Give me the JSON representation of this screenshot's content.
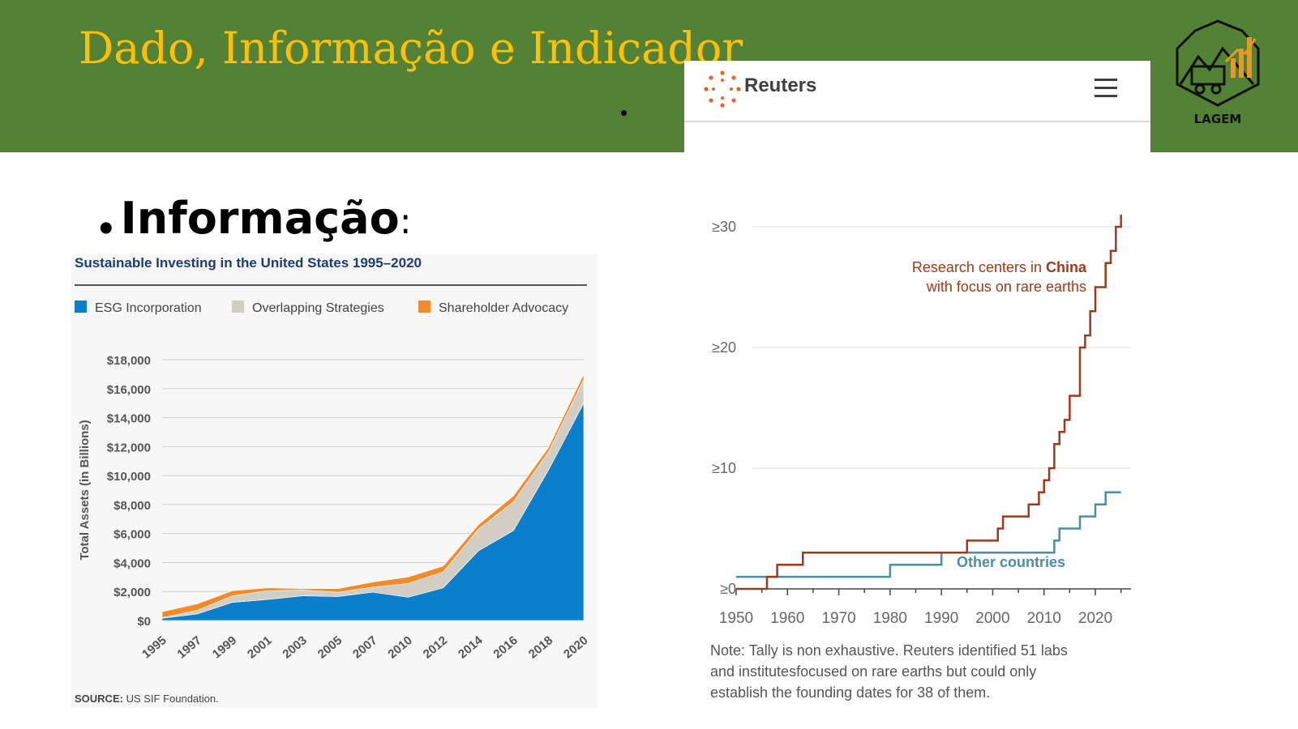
{
  "slide": {
    "title": "Dado, Informação e Indicador",
    "bullet_word": "Informação",
    "bullet_colon": ":",
    "logo_text": "LAGEM"
  },
  "reuters": {
    "brand": "Reuters",
    "note_lines": [
      "Note: Tally is non exhaustive. Reuters identified 51 labs",
      "and institutesfocused on rare earths but could only",
      "establish the founding dates for 38 of them."
    ]
  },
  "colors": {
    "header_green": "#538135",
    "title_gold": "#FFC000",
    "esg_blue": "#0B7FCC",
    "overlap_gray": "#D3CEC3",
    "advocacy_orange": "#F58A2B",
    "china_brown": "#A0381A",
    "other_teal": "#4A8FA3"
  },
  "chart_data": [
    {
      "type": "area",
      "title": "Sustainable Investing in the United States 1995–2020",
      "ylabel": "Total Assets (in Billions)",
      "xlabel": "",
      "categories": [
        "1995",
        "1997",
        "1999",
        "2001",
        "2003",
        "2005",
        "2007",
        "2010",
        "2012",
        "2014",
        "2016",
        "2018",
        "2020"
      ],
      "ylim": [
        0,
        18000
      ],
      "yticks": [
        "$0",
        "$2,000",
        "$4,000",
        "$6,000",
        "$8,000",
        "$10,000",
        "$12,000",
        "$14,000",
        "$16,000",
        "$18,000"
      ],
      "stacked": true,
      "series": [
        {
          "name": "ESG Incorporation",
          "values": [
            150,
            450,
            1250,
            1450,
            1700,
            1650,
            1950,
            1600,
            2250,
            4800,
            6200,
            10400,
            15000
          ]
        },
        {
          "name": "Overlapping Strategies",
          "values": [
            50,
            250,
            450,
            600,
            400,
            300,
            350,
            950,
            1100,
            1500,
            2000,
            1250,
            1650
          ]
        },
        {
          "name": "Shareholder Advocacy",
          "values": [
            400,
            450,
            350,
            200,
            100,
            250,
            350,
            450,
            400,
            300,
            400,
            300,
            350
          ]
        }
      ],
      "legend_position": "top",
      "grid": true,
      "source_label": "SOURCE:",
      "source_text": "US SIF Foundation."
    },
    {
      "type": "line",
      "step": true,
      "xlabel": "",
      "ylabel": "",
      "xlim": [
        1950,
        2026
      ],
      "ylim": [
        0,
        30
      ],
      "xticks": [
        "1950",
        "1960",
        "1970",
        "1980",
        "1990",
        "2000",
        "2010",
        "2020"
      ],
      "yticks": [
        {
          "value": 0,
          "label": "≥0"
        },
        {
          "value": 10,
          "label": "≥10"
        },
        {
          "value": 20,
          "label": "≥20"
        },
        {
          "value": 30,
          "label": "≥30"
        }
      ],
      "grid": true,
      "series": [
        {
          "name": "Research centers in China with focus on rare earths",
          "label_lines": [
            "Research centers in ",
            "China",
            "with focus on rare earths"
          ],
          "x": [
            1950,
            1956,
            1958,
            1963,
            1995,
            2001,
            2002,
            2007,
            2009,
            2010,
            2011,
            2012,
            2013,
            2014,
            2015,
            2017,
            2018,
            2019,
            2020,
            2022,
            2023,
            2024,
            2025
          ],
          "y": [
            0,
            1,
            2,
            3,
            4,
            5,
            6,
            7,
            8,
            9,
            10,
            12,
            13,
            14,
            16,
            20,
            21,
            23,
            25,
            27,
            28,
            30,
            31
          ]
        },
        {
          "name": "Other countries",
          "x": [
            1950,
            1980,
            1990,
            2012,
            2013,
            2017,
            2020,
            2022,
            2025
          ],
          "y": [
            1,
            2,
            3,
            4,
            5,
            6,
            7,
            8,
            8
          ]
        }
      ]
    }
  ]
}
